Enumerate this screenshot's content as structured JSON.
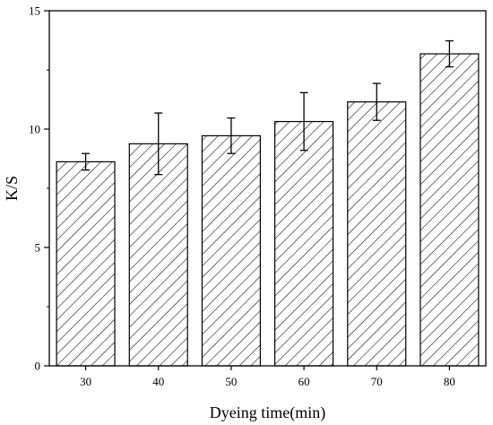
{
  "chart_data": {
    "type": "bar",
    "title": "",
    "xlabel": "Dyeing time(min)",
    "ylabel": "K/S",
    "categories": [
      "30",
      "40",
      "50",
      "60",
      "70",
      "80"
    ],
    "values": [
      8.62,
      9.38,
      9.72,
      10.32,
      11.15,
      13.18
    ],
    "error": [
      0.35,
      1.3,
      0.75,
      1.22,
      0.78,
      0.55
    ],
    "ylim": [
      0,
      15
    ],
    "yticks": [
      "0",
      "5",
      "10",
      "15"
    ],
    "grid": false,
    "legend": "none",
    "bar_fill": "hatched",
    "colors": {
      "stroke": "#000000",
      "background": "#ffffff"
    }
  }
}
